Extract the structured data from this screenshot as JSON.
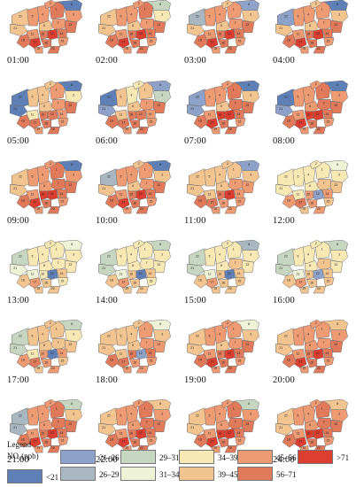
{
  "colors": {
    "c1": "#5f7fb7",
    "c2": "#8ea1c8",
    "c3": "#a9b8c0",
    "c4": "#c6d6c0",
    "c5": "#eef2d6",
    "c6": "#f7e8b4",
    "c7": "#f2c48f",
    "c8": "#ee9a72",
    "c9": "#e07a5a",
    "c10": "#dc3e2f"
  },
  "district_labels": [
    "22",
    "21",
    "5",
    "4",
    "1",
    "8",
    "2",
    "3",
    "6",
    "7",
    "13",
    "11",
    "10",
    "12",
    "14",
    "17",
    "18",
    "15",
    "16",
    "19",
    "20"
  ],
  "panels": [
    {
      "time": "01:00",
      "zones": [
        7,
        7,
        8,
        8,
        9,
        1,
        8,
        8,
        7,
        8,
        9,
        8,
        9,
        10,
        9,
        10,
        9,
        8,
        9,
        8,
        9
      ]
    },
    {
      "time": "02:00",
      "zones": [
        7,
        7,
        8,
        8,
        9,
        4,
        8,
        6,
        7,
        8,
        9,
        8,
        9,
        10,
        9,
        10,
        9,
        8,
        9,
        8,
        9
      ]
    },
    {
      "time": "03:00",
      "zones": [
        3,
        7,
        8,
        8,
        8,
        2,
        7,
        7,
        7,
        8,
        9,
        8,
        9,
        10,
        9,
        10,
        9,
        8,
        9,
        8,
        9
      ]
    },
    {
      "time": "04:00",
      "zones": [
        2,
        7,
        8,
        8,
        8,
        1,
        7,
        7,
        7,
        8,
        9,
        8,
        9,
        10,
        9,
        10,
        9,
        8,
        9,
        8,
        9
      ]
    },
    {
      "time": "05:00",
      "zones": [
        1,
        1,
        7,
        7,
        8,
        1,
        7,
        6,
        7,
        8,
        9,
        6,
        9,
        9,
        8,
        9,
        9,
        8,
        9,
        8,
        9
      ]
    },
    {
      "time": "06:00",
      "zones": [
        1,
        2,
        7,
        6,
        7,
        2,
        6,
        4,
        7,
        8,
        9,
        7,
        9,
        9,
        8,
        9,
        9,
        8,
        9,
        8,
        9
      ]
    },
    {
      "time": "07:00",
      "zones": [
        2,
        2,
        8,
        8,
        9,
        1,
        8,
        7,
        7,
        9,
        9,
        8,
        10,
        10,
        9,
        10,
        9,
        8,
        9,
        8,
        9
      ]
    },
    {
      "time": "08:00",
      "zones": [
        1,
        2,
        8,
        8,
        9,
        1,
        8,
        8,
        8,
        9,
        9,
        8,
        10,
        10,
        9,
        10,
        9,
        8,
        9,
        8,
        9
      ]
    },
    {
      "time": "09:00",
      "zones": [
        7,
        7,
        8,
        8,
        9,
        1,
        8,
        8,
        8,
        9,
        9,
        8,
        10,
        10,
        9,
        10,
        9,
        8,
        9,
        8,
        9
      ]
    },
    {
      "time": "10:00",
      "zones": [
        3,
        7,
        8,
        8,
        8,
        1,
        7,
        7,
        7,
        8,
        9,
        8,
        9,
        10,
        9,
        10,
        9,
        8,
        9,
        8,
        9
      ]
    },
    {
      "time": "11:00",
      "zones": [
        7,
        7,
        7,
        7,
        7,
        2,
        7,
        7,
        7,
        8,
        8,
        7,
        9,
        10,
        8,
        9,
        9,
        8,
        8,
        8,
        8
      ]
    },
    {
      "time": "12:00",
      "zones": [
        6,
        6,
        6,
        6,
        6,
        5,
        6,
        6,
        6,
        7,
        7,
        6,
        8,
        2,
        8,
        9,
        8,
        7,
        8,
        7,
        8
      ]
    },
    {
      "time": "13:00",
      "zones": [
        4,
        5,
        6,
        6,
        6,
        5,
        6,
        6,
        6,
        6,
        6,
        5,
        6,
        1,
        7,
        8,
        7,
        6,
        7,
        7,
        7
      ]
    },
    {
      "time": "14:00",
      "zones": [
        4,
        4,
        6,
        6,
        6,
        4,
        6,
        6,
        6,
        6,
        6,
        5,
        7,
        1,
        7,
        8,
        7,
        6,
        7,
        7,
        7
      ]
    },
    {
      "time": "15:00",
      "zones": [
        4,
        4,
        6,
        6,
        6,
        3,
        6,
        6,
        6,
        7,
        6,
        5,
        7,
        1,
        7,
        8,
        7,
        7,
        7,
        7,
        7
      ]
    },
    {
      "time": "16:00",
      "zones": [
        4,
        4,
        6,
        6,
        6,
        4,
        6,
        6,
        6,
        7,
        6,
        5,
        7,
        2,
        7,
        8,
        7,
        7,
        7,
        7,
        7
      ]
    },
    {
      "time": "17:00",
      "zones": [
        4,
        4,
        7,
        7,
        7,
        4,
        7,
        6,
        7,
        7,
        7,
        6,
        8,
        1,
        8,
        9,
        8,
        7,
        8,
        7,
        8
      ]
    },
    {
      "time": "18:00",
      "zones": [
        7,
        7,
        7,
        7,
        8,
        5,
        7,
        7,
        7,
        8,
        8,
        7,
        9,
        2,
        9,
        9,
        9,
        8,
        8,
        8,
        8
      ]
    },
    {
      "time": "19:00",
      "zones": [
        7,
        7,
        8,
        8,
        8,
        5,
        8,
        7,
        7,
        8,
        9,
        8,
        9,
        10,
        9,
        10,
        9,
        8,
        9,
        8,
        9
      ]
    },
    {
      "time": "20:00",
      "zones": [
        7,
        7,
        8,
        8,
        8,
        7,
        8,
        8,
        8,
        8,
        9,
        8,
        9,
        10,
        9,
        10,
        9,
        8,
        9,
        8,
        9
      ]
    },
    {
      "time": "21:00",
      "zones": [
        3,
        3,
        8,
        8,
        9,
        4,
        8,
        7,
        8,
        9,
        9,
        8,
        9,
        10,
        9,
        10,
        9,
        8,
        9,
        8,
        9
      ]
    },
    {
      "time": "22:00",
      "zones": [
        7,
        7,
        8,
        8,
        9,
        7,
        8,
        8,
        8,
        9,
        9,
        8,
        9,
        10,
        9,
        10,
        9,
        8,
        9,
        8,
        9
      ]
    },
    {
      "time": "23:00",
      "zones": [
        7,
        7,
        8,
        8,
        9,
        4,
        8,
        8,
        8,
        9,
        9,
        8,
        10,
        10,
        9,
        10,
        9,
        8,
        9,
        8,
        9
      ]
    },
    {
      "time": "24:00",
      "zones": [
        7,
        7,
        8,
        8,
        9,
        7,
        8,
        8,
        8,
        9,
        9,
        8,
        10,
        10,
        9,
        10,
        9,
        8,
        9,
        8,
        9
      ]
    }
  ],
  "legend": {
    "title": "Legend",
    "subtitle": "NO₂(ppb)",
    "classes": [
      {
        "label": "<21",
        "color": "#5f7fb7"
      },
      {
        "label": "21–26",
        "color": "#8ea1c8"
      },
      {
        "label": "26–29",
        "color": "#a9b8c0"
      },
      {
        "label": "29–31",
        "color": "#c6d6c0"
      },
      {
        "label": "31–34",
        "color": "#eef2d6"
      },
      {
        "label": "34–39",
        "color": "#f7e8b4"
      },
      {
        "label": "39–45",
        "color": "#f2c48f"
      },
      {
        "label": "45–56",
        "color": "#ee9a72"
      },
      {
        "label": "56–71",
        "color": "#e07a5a"
      },
      {
        "label": ">71",
        "color": "#dc3e2f"
      }
    ]
  }
}
